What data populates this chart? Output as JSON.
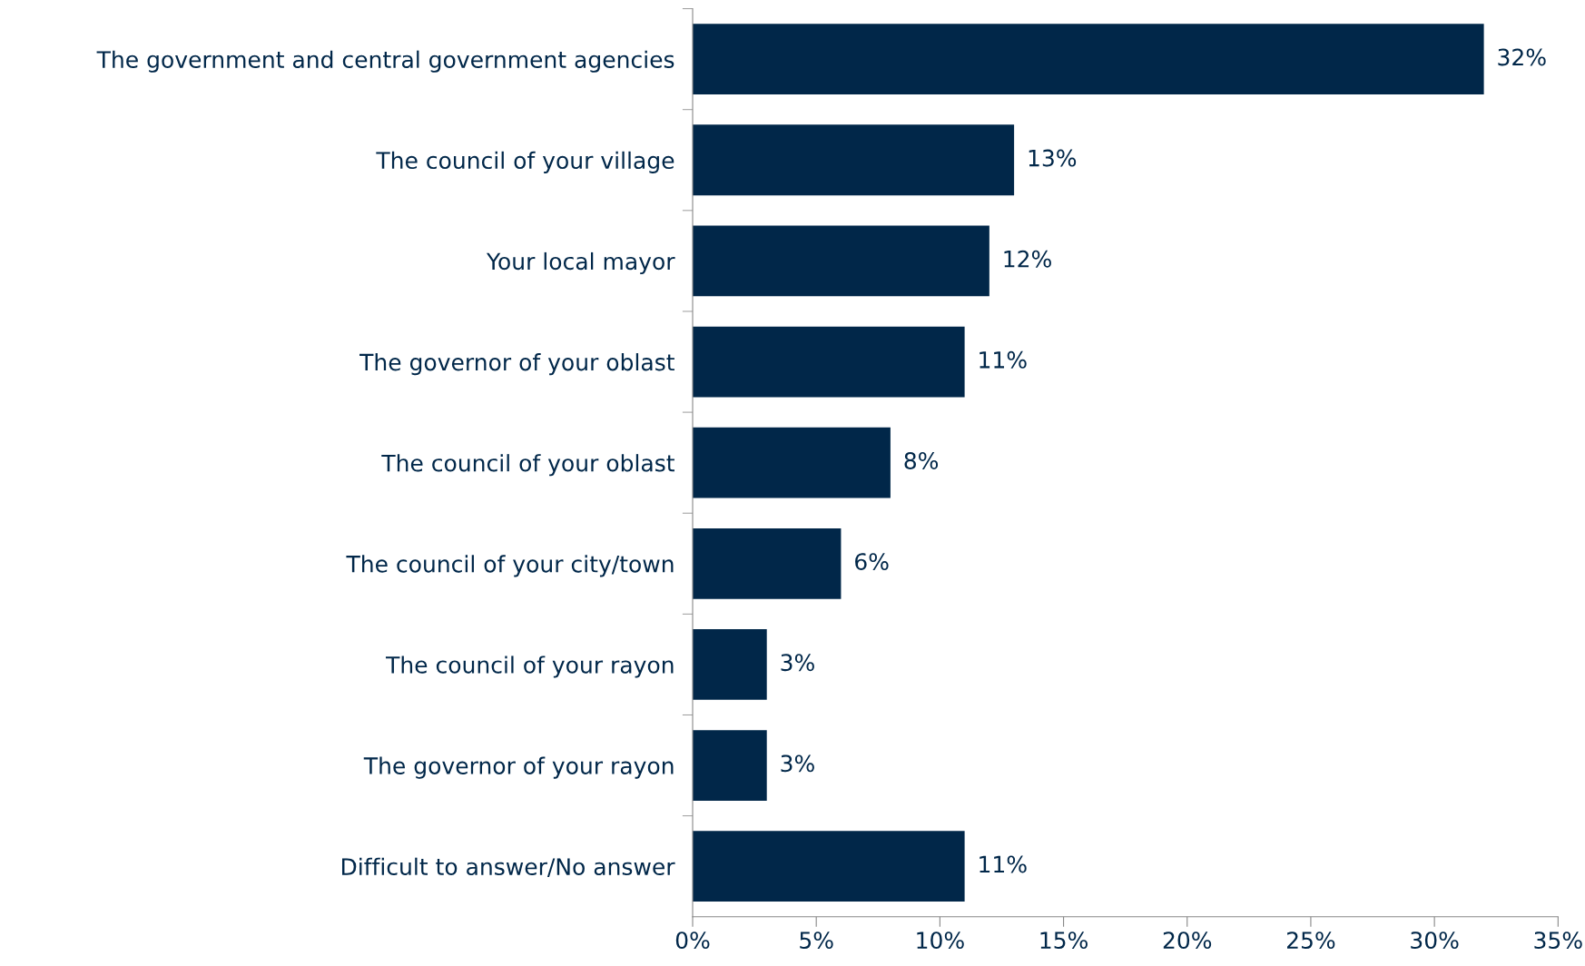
{
  "chart_data": {
    "type": "bar",
    "orientation": "horizontal",
    "categories": [
      "The government and central government agencies",
      "The council of your village",
      "Your local mayor",
      "The governor of your oblast",
      "The council of your oblast",
      "The council of your city/town",
      "The council of your rayon",
      "The governor of your rayon",
      "Difficult to answer/No answer"
    ],
    "values": [
      32,
      13,
      12,
      11,
      8,
      6,
      3,
      3,
      11
    ],
    "value_labels": [
      "32%",
      "13%",
      "12%",
      "11%",
      "8%",
      "6%",
      "3%",
      "3%",
      "11%"
    ],
    "color": "#012749",
    "xlim": [
      0,
      35
    ],
    "xticks": [
      {
        "value": 0,
        "label": "0%"
      },
      {
        "value": 5,
        "label": "5%"
      },
      {
        "value": 10,
        "label": "10%"
      },
      {
        "value": 15,
        "label": "15%"
      },
      {
        "value": 20,
        "label": "20%"
      },
      {
        "value": 25,
        "label": "25%"
      },
      {
        "value": 30,
        "label": "30%"
      },
      {
        "value": 35,
        "label": "35%"
      }
    ],
    "grid": false
  }
}
